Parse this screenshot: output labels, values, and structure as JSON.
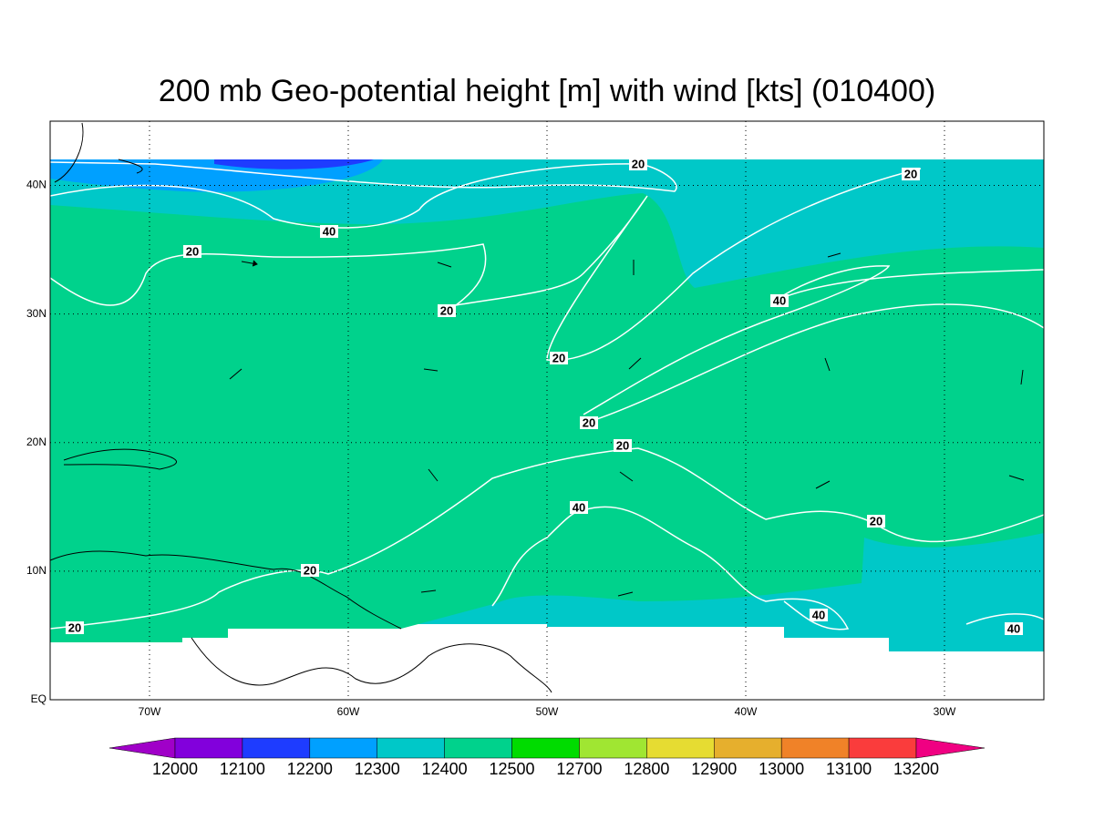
{
  "title": "200 mb Geo-potential height [m] with wind [kts] (010400)",
  "map": {
    "xlim": [
      -75,
      -25
    ],
    "ylim": [
      0,
      45
    ],
    "xticks": [
      {
        "value": -70,
        "label": "70W"
      },
      {
        "value": -60,
        "label": "60W"
      },
      {
        "value": -50,
        "label": "50W"
      },
      {
        "value": -40,
        "label": "40W"
      },
      {
        "value": -30,
        "label": "30W"
      }
    ],
    "yticks": [
      {
        "value": 0,
        "label": "EQ"
      },
      {
        "value": 10,
        "label": "10N"
      },
      {
        "value": 20,
        "label": "20N"
      },
      {
        "value": 30,
        "label": "30N"
      },
      {
        "value": 40,
        "label": "40N"
      }
    ],
    "grid": true,
    "contour_labels": [
      20,
      20,
      40,
      20,
      20,
      40,
      20,
      20,
      20,
      40,
      20,
      20,
      20,
      40,
      40
    ]
  },
  "colorbar": {
    "levels": [
      12000,
      12100,
      12200,
      12300,
      12400,
      12500,
      12700,
      12800,
      12900,
      13000,
      13100,
      13200
    ],
    "colors": [
      "#a000c8",
      "#8200dc",
      "#1e3cff",
      "#00a0ff",
      "#00c8c8",
      "#00d28c",
      "#00dc00",
      "#a0e632",
      "#e6dc32",
      "#e6af2d",
      "#f08228",
      "#fa3c3c",
      "#f00082"
    ]
  }
}
